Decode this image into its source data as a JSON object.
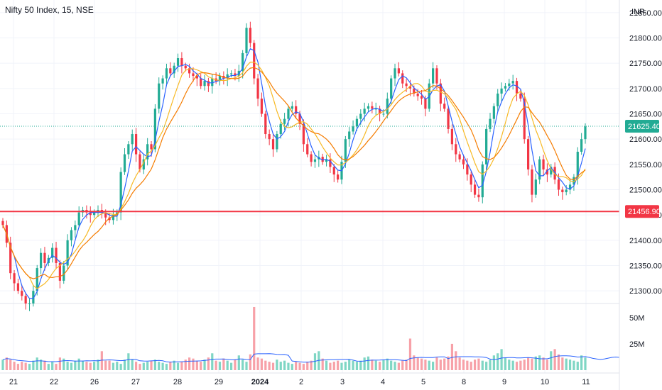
{
  "header": {
    "title": "Nifty 50 Index, 15, NSE",
    "currency": "INR"
  },
  "chart_data": {
    "type": "candlestick",
    "price_axis": {
      "ylim": [
        21275,
        21875
      ],
      "ticks": [
        "21850.00",
        "21800.00",
        "21750.00",
        "21700.00",
        "21650.00",
        "21600.00",
        "21550.00",
        "21500.00",
        "21450.00",
        "21400.00",
        "21350.00",
        "21300.00"
      ]
    },
    "volume_axis": {
      "ticks": [
        "50M",
        "25M"
      ]
    },
    "x_labels": [
      "21",
      "22",
      "26",
      "27",
      "28",
      "29",
      "2024",
      "2",
      "3",
      "4",
      "5",
      "8",
      "9",
      "10",
      "11"
    ],
    "last_price": {
      "label": "21625.40",
      "value": 21625.4
    },
    "support_line": {
      "label": "21456.90",
      "value": 21456.9
    },
    "price_path": [
      [
        0,
        21430
      ],
      [
        3,
        21395
      ],
      [
        6,
        21335
      ],
      [
        8,
        21315
      ],
      [
        11,
        21300
      ],
      [
        14,
        21290
      ],
      [
        16,
        21275
      ],
      [
        18,
        21275
      ],
      [
        20,
        21300
      ],
      [
        22,
        21345
      ],
      [
        23,
        21375
      ],
      [
        24,
        21355
      ],
      [
        25,
        21365
      ],
      [
        27,
        21385
      ],
      [
        29,
        21355
      ],
      [
        31,
        21320
      ],
      [
        33,
        21350
      ],
      [
        34,
        21400
      ],
      [
        35,
        21420
      ],
      [
        36,
        21430
      ],
      [
        37,
        21455
      ],
      [
        38,
        21460
      ],
      [
        39,
        21455
      ],
      [
        40,
        21450
      ],
      [
        41,
        21455
      ],
      [
        42,
        21460
      ],
      [
        43,
        21455
      ],
      [
        44,
        21445
      ],
      [
        45,
        21440
      ],
      [
        46,
        21450
      ],
      [
        47,
        21455
      ],
      [
        49,
        21535
      ],
      [
        50,
        21570
      ],
      [
        51,
        21590
      ],
      [
        52,
        21610
      ],
      [
        53,
        21570
      ],
      [
        54,
        21540
      ],
      [
        55,
        21560
      ],
      [
        56,
        21590
      ],
      [
        57,
        21580
      ],
      [
        58,
        21660
      ],
      [
        59,
        21710
      ],
      [
        60,
        21720
      ],
      [
        61,
        21740
      ],
      [
        62,
        21730
      ],
      [
        63,
        21745
      ],
      [
        64,
        21760
      ],
      [
        65,
        21745
      ],
      [
        66,
        21740
      ],
      [
        67,
        21730
      ],
      [
        68,
        21725
      ],
      [
        69,
        21720
      ],
      [
        70,
        21705
      ],
      [
        71,
        21715
      ],
      [
        72,
        21705
      ],
      [
        73,
        21720
      ],
      [
        74,
        21715
      ],
      [
        75,
        21725
      ],
      [
        76,
        21720
      ],
      [
        77,
        21728
      ],
      [
        78,
        21730
      ],
      [
        79,
        21725
      ],
      [
        80,
        21735
      ],
      [
        81,
        21770
      ],
      [
        82,
        21820
      ],
      [
        83,
        21790
      ],
      [
        84,
        21720
      ],
      [
        85,
        21680
      ],
      [
        86,
        21650
      ],
      [
        87,
        21610
      ],
      [
        88,
        21600
      ],
      [
        89,
        21580
      ],
      [
        90,
        21610
      ],
      [
        91,
        21630
      ],
      [
        92,
        21640
      ],
      [
        93,
        21660
      ],
      [
        94,
        21665
      ],
      [
        95,
        21650
      ],
      [
        96,
        21630
      ],
      [
        97,
        21590
      ],
      [
        98,
        21570
      ],
      [
        99,
        21555
      ],
      [
        100,
        21560
      ],
      [
        101,
        21565
      ],
      [
        102,
        21555
      ],
      [
        103,
        21560
      ],
      [
        104,
        21545
      ],
      [
        105,
        21530
      ],
      [
        106,
        21520
      ],
      [
        107,
        21555
      ],
      [
        108,
        21600
      ],
      [
        109,
        21615
      ],
      [
        110,
        21625
      ],
      [
        111,
        21640
      ],
      [
        112,
        21650
      ],
      [
        113,
        21660
      ],
      [
        114,
        21665
      ],
      [
        115,
        21660
      ],
      [
        116,
        21660
      ],
      [
        117,
        21650
      ],
      [
        118,
        21650
      ],
      [
        119,
        21680
      ],
      [
        120,
        21720
      ],
      [
        121,
        21740
      ],
      [
        122,
        21730
      ],
      [
        123,
        21710
      ],
      [
        124,
        21705
      ],
      [
        125,
        21700
      ],
      [
        126,
        21690
      ],
      [
        127,
        21685
      ],
      [
        128,
        21680
      ],
      [
        129,
        21660
      ],
      [
        130,
        21710
      ],
      [
        131,
        21740
      ],
      [
        132,
        21710
      ],
      [
        133,
        21670
      ],
      [
        134,
        21660
      ],
      [
        135,
        21620
      ],
      [
        136,
        21590
      ],
      [
        137,
        21570
      ],
      [
        138,
        21560
      ],
      [
        139,
        21550
      ],
      [
        140,
        21530
      ],
      [
        141,
        21510
      ],
      [
        142,
        21490
      ],
      [
        143,
        21485
      ],
      [
        144,
        21550
      ],
      [
        145,
        21620
      ],
      [
        146,
        21640
      ],
      [
        147,
        21665
      ],
      [
        148,
        21690
      ],
      [
        149,
        21700
      ],
      [
        150,
        21705
      ],
      [
        151,
        21710
      ],
      [
        152,
        21715
      ],
      [
        153,
        21690
      ],
      [
        154,
        21680
      ],
      [
        155,
        21600
      ],
      [
        156,
        21540
      ],
      [
        157,
        21490
      ],
      [
        158,
        21520
      ],
      [
        159,
        21560
      ],
      [
        160,
        21540
      ],
      [
        161,
        21530
      ],
      [
        162,
        21545
      ],
      [
        163,
        21520
      ],
      [
        164,
        21500
      ],
      [
        165,
        21495
      ],
      [
        166,
        21500
      ],
      [
        167,
        21510
      ],
      [
        168,
        21525
      ],
      [
        169,
        21575
      ],
      [
        170,
        21600
      ],
      [
        171,
        21625
      ]
    ],
    "volume_levels": [
      10,
      12,
      10,
      8,
      6,
      8,
      7,
      6,
      9,
      12,
      10,
      9,
      6,
      8,
      6,
      12,
      11,
      8,
      7,
      9,
      11,
      9,
      8,
      7,
      8,
      10,
      18,
      9,
      9,
      7,
      8,
      6,
      10,
      16,
      10,
      8,
      6,
      7,
      8,
      9,
      10,
      8,
      7,
      6,
      8,
      9,
      7,
      8,
      10,
      12,
      11,
      9,
      8,
      10,
      12,
      16,
      9,
      8,
      11,
      9,
      7,
      10,
      14,
      10,
      8,
      15,
      60,
      12,
      11,
      9,
      8,
      7,
      10,
      8,
      9,
      7,
      6,
      8,
      7,
      6,
      8,
      9,
      16,
      18,
      11,
      9,
      7,
      8,
      9,
      7,
      8,
      10,
      9,
      8,
      9,
      12,
      13,
      10,
      9,
      8,
      10,
      11,
      9,
      8,
      7,
      9,
      10,
      30,
      14,
      12,
      11,
      10,
      9,
      8,
      12,
      10,
      11,
      13,
      25,
      18,
      12,
      10,
      9,
      8,
      10,
      11,
      9,
      8,
      10,
      14,
      16,
      20,
      12,
      10,
      9,
      8,
      9,
      10,
      12,
      11,
      13,
      14,
      12,
      10,
      18,
      20,
      15,
      12,
      11,
      10,
      9,
      8,
      14,
      12,
      10,
      11,
      9,
      8,
      15,
      18,
      16,
      12,
      10,
      9,
      8,
      9,
      10,
      11,
      16,
      12
    ]
  }
}
